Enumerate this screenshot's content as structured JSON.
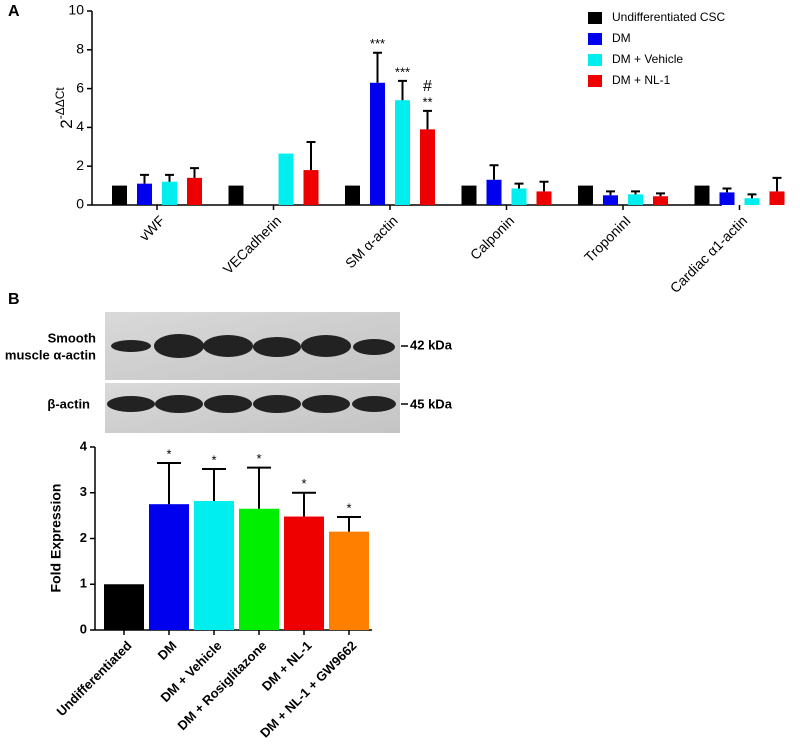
{
  "panels": [
    "A",
    "B"
  ],
  "chart_data": [
    {
      "type": "bar",
      "ylabel": {
        "base": "2",
        "exponent": "-ΔΔCt"
      },
      "categories": [
        "vWF",
        "VECadherin",
        "SM α-actin",
        "Calponin",
        "TroponinI",
        "Cardiac α1-actin"
      ],
      "ylim": [
        0,
        10
      ],
      "yticks": [
        0,
        2,
        4,
        6,
        8,
        10
      ],
      "grid": false,
      "legend": "top-right",
      "series": [
        {
          "name": "Undifferentiated CSC",
          "color": "#000000",
          "values": [
            1,
            1,
            1,
            1,
            1,
            1
          ]
        },
        {
          "name": "DM",
          "color": "#0000ee",
          "values": [
            1.1,
            null,
            6.3,
            1.3,
            0.5,
            0.65
          ],
          "errors": [
            0.45,
            null,
            1.55,
            0.75,
            0.2,
            0.2
          ],
          "annotations": [
            null,
            null,
            "***",
            null,
            null,
            null
          ]
        },
        {
          "name": "DM + Vehicle",
          "color": "#00eeee",
          "values": [
            1.2,
            2.65,
            5.4,
            0.85,
            0.55,
            0.35
          ],
          "errors": [
            0.35,
            null,
            1.0,
            0.25,
            0.15,
            0.2
          ],
          "annotations": [
            null,
            null,
            "***",
            null,
            null,
            null
          ]
        },
        {
          "name": "DM + NL-1",
          "color": "#ee0000",
          "values": [
            1.4,
            1.8,
            3.9,
            0.7,
            0.45,
            0.7
          ],
          "errors": [
            0.5,
            1.45,
            0.95,
            0.5,
            0.15,
            0.7
          ],
          "annotations": [
            null,
            null,
            [
              "#",
              "**"
            ],
            null,
            null,
            null
          ]
        }
      ]
    },
    {
      "type": "bar",
      "ylabel": "Fold Expression",
      "categories": [
        "Undifferentiated",
        "DM",
        "DM + Vehicle",
        "DM + Rosiglitazone",
        "DM + NL-1",
        "DM + NL-1 + GW9662"
      ],
      "values": [
        1,
        2.75,
        2.82,
        2.65,
        2.48,
        2.15
      ],
      "errors": [
        null,
        0.9,
        0.7,
        0.9,
        0.52,
        0.32
      ],
      "colors": [
        "#000000",
        "#0000ee",
        "#00eeee",
        "#00ee00",
        "#ee0000",
        "#ff8000"
      ],
      "annotations": [
        null,
        "*",
        "*",
        "*",
        "*",
        "*"
      ],
      "ylim": [
        0,
        4
      ],
      "yticks": [
        0,
        1,
        2,
        3,
        4
      ],
      "grid": false
    }
  ],
  "blot": {
    "rows": [
      {
        "label": [
          "Smooth",
          "muscle α-actin"
        ],
        "size": "42 kDa"
      },
      {
        "label": [
          "β-actin"
        ],
        "size": "45 kDa"
      }
    ]
  }
}
